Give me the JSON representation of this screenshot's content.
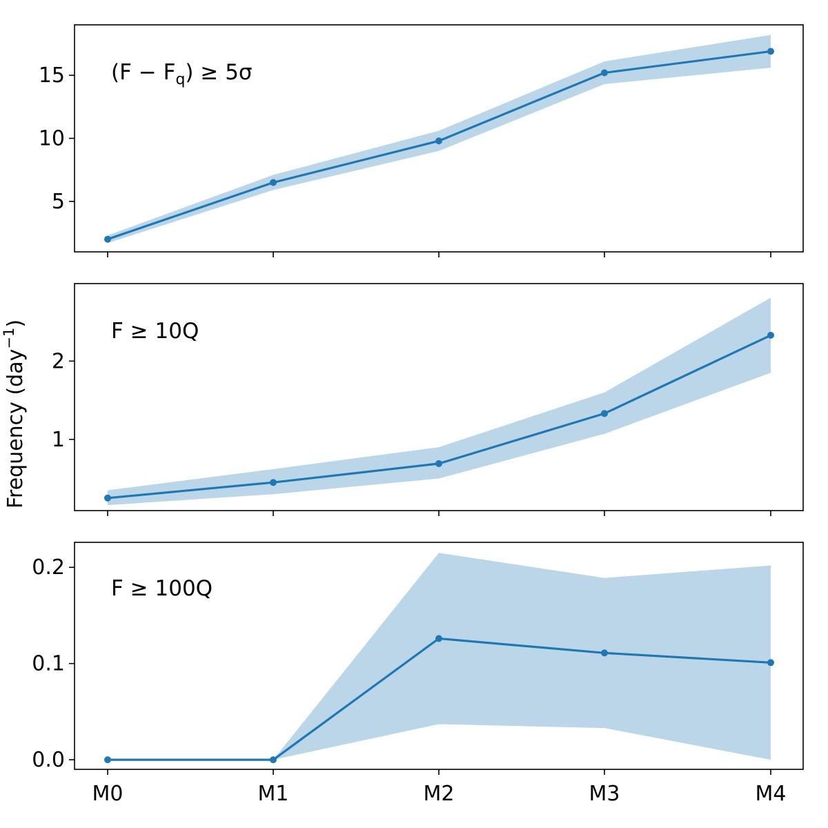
{
  "chart_data": {
    "type": "line",
    "ylabel": "Frequency (day",
    "ylabel_superscript": "−1",
    "ylabel_suffix": ")",
    "categories": [
      "M0",
      "M1",
      "M2",
      "M3",
      "M4"
    ],
    "color": "#1f77b4",
    "band_color": "#1f77b4",
    "band_opacity": 0.3,
    "panels": [
      {
        "label": "(F − F",
        "label_subscript": "q",
        "label_suffix": ") ≥ 5σ",
        "ylim": [
          1.0,
          19.0
        ],
        "yticks": [
          5,
          10,
          15
        ],
        "ytick_labels": [
          "5",
          "10",
          "15"
        ],
        "values": [
          2.0,
          6.5,
          9.8,
          15.2,
          16.9
        ],
        "lower": [
          1.7,
          5.9,
          9.0,
          14.3,
          15.6
        ],
        "upper": [
          2.3,
          7.1,
          10.6,
          16.1,
          18.2
        ]
      },
      {
        "label": "F ≥ 10Q",
        "ylim": [
          0.09,
          2.99
        ],
        "yticks": [
          1,
          2
        ],
        "ytick_labels": [
          "1",
          "2"
        ],
        "values": [
          0.25,
          0.45,
          0.69,
          1.33,
          2.33
        ],
        "lower": [
          0.16,
          0.3,
          0.5,
          1.07,
          1.85
        ],
        "upper": [
          0.35,
          0.62,
          0.9,
          1.6,
          2.81
        ]
      },
      {
        "label": "F ≥ 100Q",
        "ylim": [
          -0.01,
          0.226
        ],
        "yticks": [
          0.0,
          0.1,
          0.2
        ],
        "ytick_labels": [
          "0.0",
          "0.1",
          "0.2"
        ],
        "values": [
          0.0,
          0.0,
          0.126,
          0.111,
          0.101
        ],
        "lower": [
          0.0,
          0.0,
          0.037,
          0.033,
          0.0
        ],
        "upper": [
          0.0,
          0.0,
          0.215,
          0.189,
          0.202
        ]
      }
    ]
  }
}
